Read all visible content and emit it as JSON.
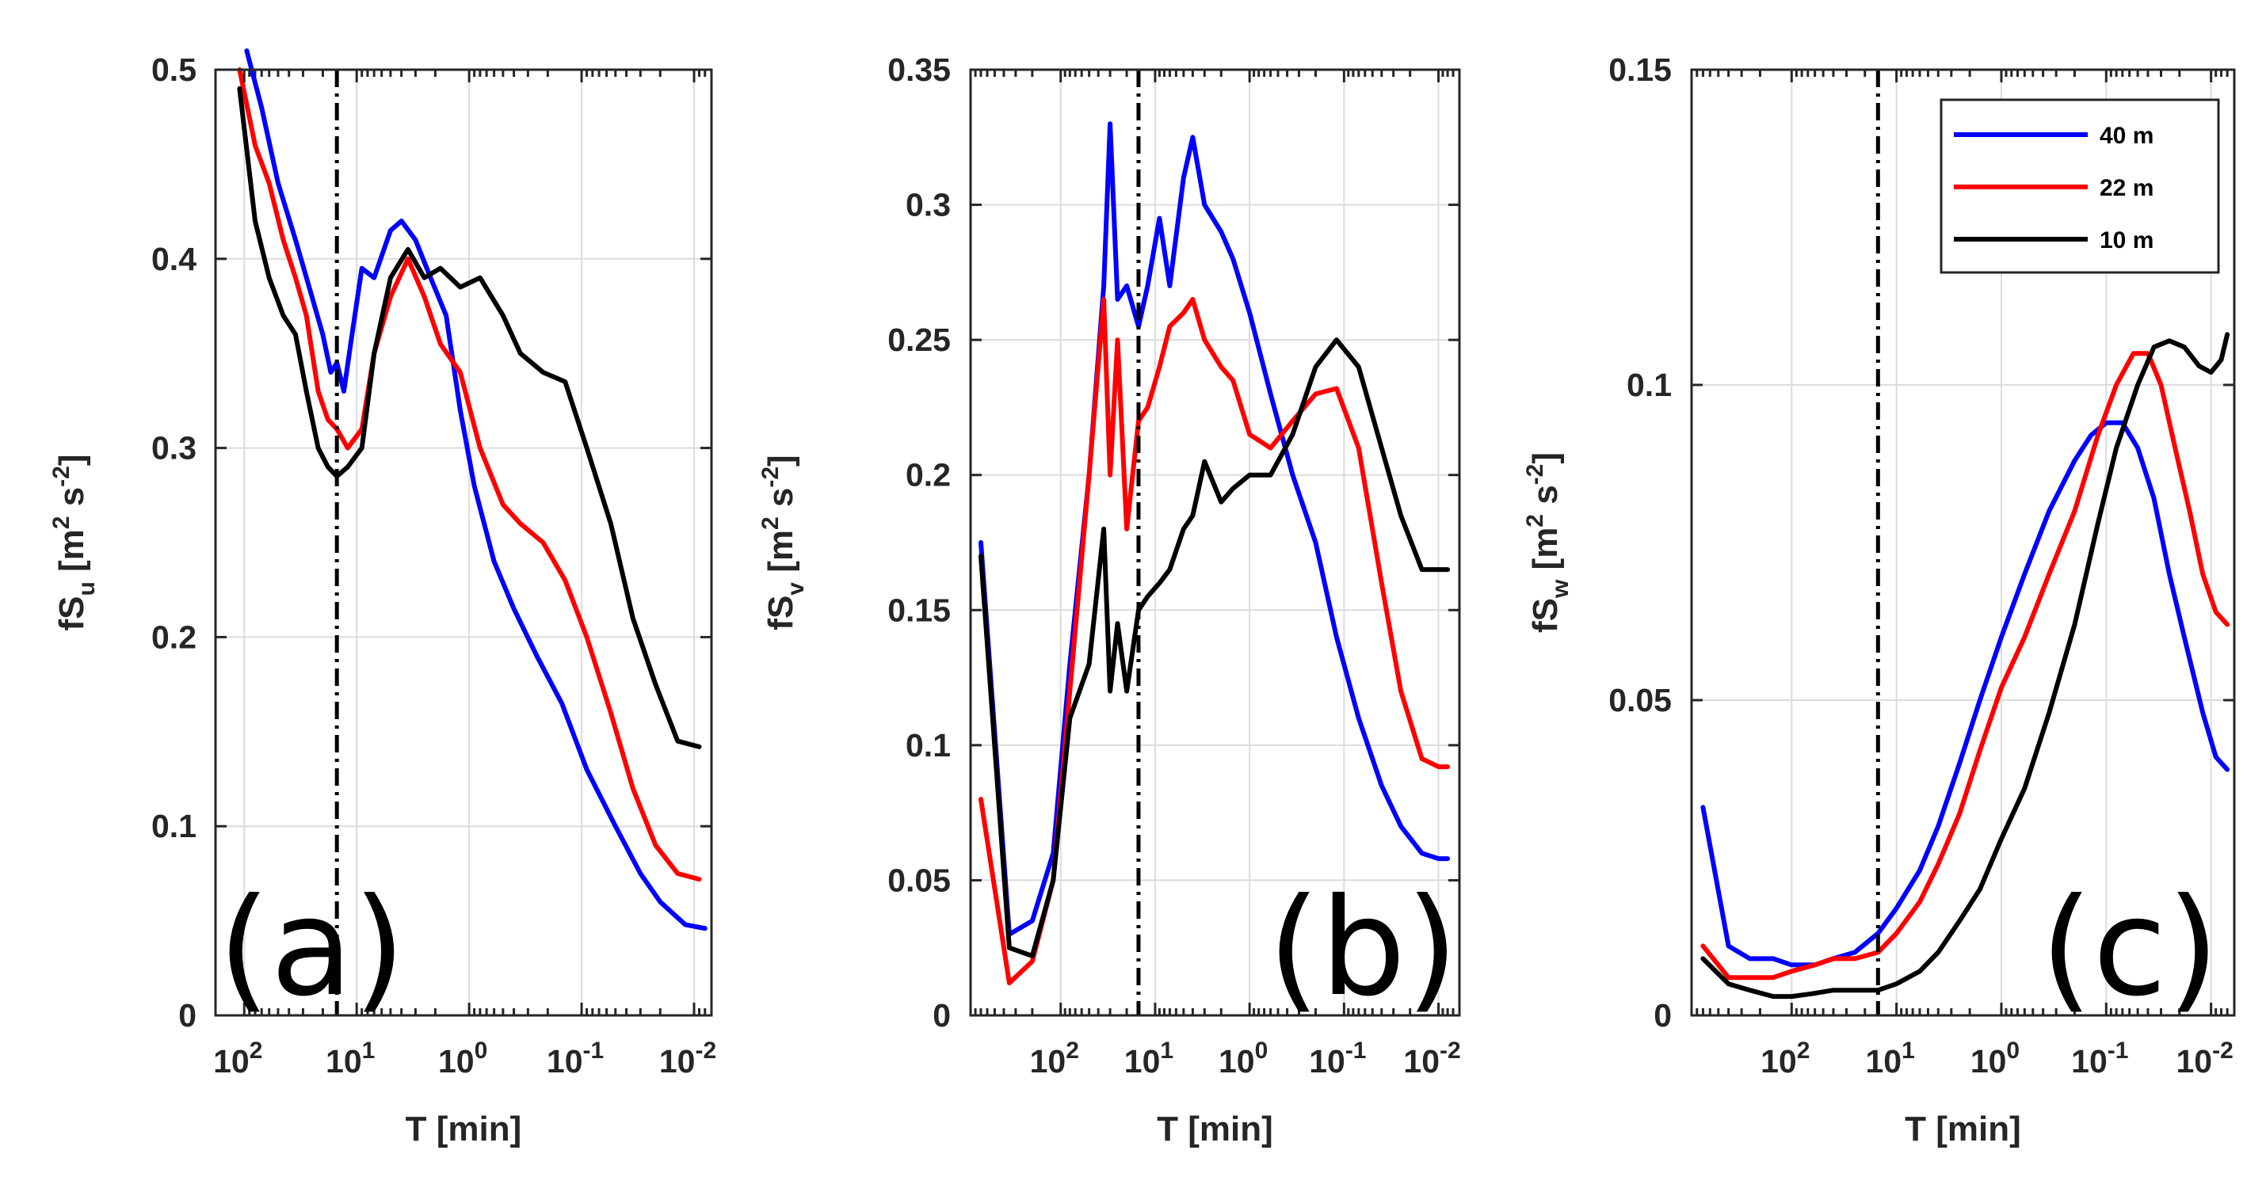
{
  "chart_data": [
    {
      "type": "line",
      "panel_label": "(a)",
      "xlabel": "T [min]",
      "ylabel_base": "fS",
      "ylabel_sub": "u",
      "ylabel_unit_open": " [m",
      "ylabel_unit_sup1": "2",
      "ylabel_unit_mid": " s",
      "ylabel_unit_sup2": "-2",
      "ylabel_unit_close": "]",
      "x_scale": "log-reversed",
      "xlim_min": [
        180,
        0.007
      ],
      "ylim": [
        0,
        0.5
      ],
      "yticks": [
        0,
        0.1,
        0.2,
        0.3,
        0.4,
        0.5
      ],
      "ytick_labels": [
        "0",
        "0.1",
        "0.2",
        "0.3",
        "0.4",
        "0.5"
      ],
      "xtick_labels": [
        {
          "base": "10",
          "exp": "2",
          "value": 100
        },
        {
          "base": "10",
          "exp": "1",
          "value": 10
        },
        {
          "base": "10",
          "exp": "0",
          "value": 1
        },
        {
          "base": "10",
          "exp": "-1",
          "value": 0.1
        },
        {
          "base": "10",
          "exp": "-2",
          "value": 0.01
        }
      ],
      "vline_x": 15,
      "series": [
        {
          "name": "40 m",
          "color": "#0000ff",
          "x": [
            95,
            70,
            50,
            35,
            25,
            20,
            17,
            15,
            13,
            11,
            9,
            7,
            5,
            4,
            3,
            2.2,
            1.6,
            1.2,
            0.9,
            0.6,
            0.4,
            0.25,
            0.15,
            0.09,
            0.05,
            0.03,
            0.02,
            0.012,
            0.008
          ],
          "y": [
            0.51,
            0.48,
            0.44,
            0.41,
            0.38,
            0.36,
            0.34,
            0.345,
            0.33,
            0.36,
            0.395,
            0.39,
            0.415,
            0.42,
            0.41,
            0.39,
            0.37,
            0.32,
            0.28,
            0.24,
            0.215,
            0.19,
            0.165,
            0.13,
            0.1,
            0.075,
            0.06,
            0.048,
            0.046
          ]
        },
        {
          "name": "22 m",
          "color": "#ff0000",
          "x": [
            110,
            80,
            60,
            45,
            35,
            28,
            22,
            18,
            15,
            12,
            9,
            7,
            5,
            3.5,
            2.5,
            1.8,
            1.2,
            0.8,
            0.5,
            0.35,
            0.22,
            0.14,
            0.09,
            0.055,
            0.035,
            0.022,
            0.014,
            0.009
          ],
          "y": [
            0.5,
            0.46,
            0.44,
            0.41,
            0.39,
            0.37,
            0.33,
            0.315,
            0.31,
            0.3,
            0.31,
            0.35,
            0.38,
            0.4,
            0.38,
            0.355,
            0.34,
            0.3,
            0.27,
            0.26,
            0.25,
            0.23,
            0.2,
            0.16,
            0.12,
            0.09,
            0.075,
            0.072
          ]
        },
        {
          "name": "10 m",
          "color": "#000000",
          "x": [
            110,
            80,
            60,
            45,
            35,
            28,
            22,
            18,
            15,
            12,
            9,
            7,
            5,
            3.5,
            2.5,
            1.8,
            1.2,
            0.8,
            0.5,
            0.35,
            0.22,
            0.14,
            0.09,
            0.055,
            0.035,
            0.022,
            0.014,
            0.009
          ],
          "y": [
            0.49,
            0.42,
            0.39,
            0.37,
            0.36,
            0.33,
            0.3,
            0.29,
            0.285,
            0.29,
            0.3,
            0.35,
            0.39,
            0.405,
            0.39,
            0.395,
            0.385,
            0.39,
            0.37,
            0.35,
            0.34,
            0.335,
            0.3,
            0.26,
            0.21,
            0.175,
            0.145,
            0.142
          ]
        }
      ]
    },
    {
      "type": "line",
      "panel_label": "(b)",
      "xlabel": "T [min]",
      "ylabel_base": "fS",
      "ylabel_sub": "v",
      "ylabel_unit_open": " [m",
      "ylabel_unit_sup1": "2",
      "ylabel_unit_mid": " s",
      "ylabel_unit_sup2": "-2",
      "ylabel_unit_close": "]",
      "x_scale": "log-reversed",
      "xlim_min": [
        900,
        0.006
      ],
      "ylim": [
        0,
        0.35
      ],
      "yticks": [
        0,
        0.05,
        0.1,
        0.15,
        0.2,
        0.25,
        0.3,
        0.35
      ],
      "ytick_labels": [
        "0",
        "0.05",
        "0.1",
        "0.15",
        "0.2",
        "0.25",
        "0.3",
        "0.35"
      ],
      "xtick_labels": [
        {
          "base": "10",
          "exp": "2",
          "value": 100
        },
        {
          "base": "10",
          "exp": "1",
          "value": 10
        },
        {
          "base": "10",
          "exp": "0",
          "value": 1
        },
        {
          "base": "10",
          "exp": "-1",
          "value": 0.1
        },
        {
          "base": "10",
          "exp": "-2",
          "value": 0.01
        }
      ],
      "vline_x": 15,
      "series": [
        {
          "name": "40 m",
          "color": "#0000ff",
          "x": [
            700,
            350,
            200,
            120,
            80,
            50,
            35,
            30,
            25,
            20,
            15,
            12,
            9,
            7,
            5,
            4,
            3,
            2,
            1.5,
            1,
            0.6,
            0.35,
            0.2,
            0.12,
            0.07,
            0.04,
            0.025,
            0.015,
            0.01,
            0.008
          ],
          "y": [
            0.175,
            0.03,
            0.035,
            0.06,
            0.13,
            0.2,
            0.27,
            0.33,
            0.265,
            0.27,
            0.255,
            0.27,
            0.295,
            0.27,
            0.31,
            0.325,
            0.3,
            0.29,
            0.28,
            0.26,
            0.23,
            0.2,
            0.175,
            0.14,
            0.11,
            0.085,
            0.07,
            0.06,
            0.058,
            0.058
          ]
        },
        {
          "name": "22 m",
          "color": "#ff0000",
          "x": [
            700,
            350,
            200,
            120,
            80,
            50,
            35,
            30,
            25,
            20,
            15,
            12,
            9,
            7,
            5,
            4,
            3,
            2,
            1.5,
            1,
            0.6,
            0.35,
            0.2,
            0.12,
            0.07,
            0.04,
            0.025,
            0.015,
            0.01,
            0.008
          ],
          "y": [
            0.08,
            0.012,
            0.02,
            0.05,
            0.12,
            0.2,
            0.265,
            0.2,
            0.25,
            0.18,
            0.22,
            0.225,
            0.24,
            0.255,
            0.26,
            0.265,
            0.25,
            0.24,
            0.235,
            0.215,
            0.21,
            0.22,
            0.23,
            0.232,
            0.21,
            0.16,
            0.12,
            0.095,
            0.092,
            0.092
          ]
        },
        {
          "name": "10 m",
          "color": "#000000",
          "x": [
            700,
            350,
            200,
            120,
            80,
            50,
            35,
            30,
            25,
            20,
            15,
            12,
            9,
            7,
            5,
            4,
            3,
            2,
            1.5,
            1,
            0.6,
            0.35,
            0.2,
            0.12,
            0.07,
            0.04,
            0.025,
            0.015,
            0.01,
            0.008
          ],
          "y": [
            0.17,
            0.025,
            0.022,
            0.05,
            0.11,
            0.13,
            0.18,
            0.12,
            0.145,
            0.12,
            0.15,
            0.155,
            0.16,
            0.165,
            0.18,
            0.185,
            0.205,
            0.19,
            0.195,
            0.2,
            0.2,
            0.215,
            0.24,
            0.25,
            0.24,
            0.21,
            0.185,
            0.165,
            0.165,
            0.165
          ]
        }
      ]
    },
    {
      "type": "line",
      "panel_label": "(c)",
      "xlabel": "T [min]",
      "ylabel_base": "fS",
      "ylabel_sub": "w",
      "ylabel_unit_open": " [m",
      "ylabel_unit_sup1": "2",
      "ylabel_unit_mid": " s",
      "ylabel_unit_sup2": "-2",
      "ylabel_unit_close": "]",
      "x_scale": "log-reversed",
      "xlim_min": [
        900,
        0.006
      ],
      "ylim": [
        0,
        0.15
      ],
      "yticks": [
        0,
        0.05,
        0.1,
        0.15
      ],
      "ytick_labels": [
        "0",
        "0.05",
        "0.1",
        "0.15"
      ],
      "xtick_labels": [
        {
          "base": "10",
          "exp": "2",
          "value": 100
        },
        {
          "base": "10",
          "exp": "1",
          "value": 10
        },
        {
          "base": "10",
          "exp": "0",
          "value": 1
        },
        {
          "base": "10",
          "exp": "-1",
          "value": 0.1
        },
        {
          "base": "10",
          "exp": "-2",
          "value": 0.01
        }
      ],
      "vline_x": 15,
      "legend_position": "top-right",
      "series": [
        {
          "name": "40 m",
          "color": "#0000ff",
          "x": [
            700,
            400,
            250,
            150,
            100,
            60,
            40,
            25,
            15,
            10,
            6,
            4,
            2.5,
            1.6,
            1,
            0.6,
            0.35,
            0.2,
            0.14,
            0.1,
            0.07,
            0.05,
            0.035,
            0.025,
            0.018,
            0.012,
            0.009,
            0.007
          ],
          "y": [
            0.033,
            0.011,
            0.009,
            0.009,
            0.008,
            0.008,
            0.009,
            0.01,
            0.013,
            0.017,
            0.023,
            0.03,
            0.04,
            0.05,
            0.06,
            0.07,
            0.08,
            0.088,
            0.092,
            0.094,
            0.094,
            0.09,
            0.082,
            0.07,
            0.06,
            0.048,
            0.041,
            0.039
          ]
        },
        {
          "name": "22 m",
          "color": "#ff0000",
          "x": [
            700,
            400,
            250,
            150,
            100,
            60,
            40,
            25,
            15,
            10,
            6,
            4,
            2.5,
            1.6,
            1,
            0.6,
            0.35,
            0.2,
            0.12,
            0.08,
            0.055,
            0.04,
            0.03,
            0.022,
            0.016,
            0.012,
            0.009,
            0.007
          ],
          "y": [
            0.011,
            0.006,
            0.006,
            0.006,
            0.007,
            0.008,
            0.009,
            0.009,
            0.01,
            0.013,
            0.018,
            0.024,
            0.032,
            0.042,
            0.052,
            0.06,
            0.07,
            0.08,
            0.092,
            0.1,
            0.105,
            0.105,
            0.1,
            0.09,
            0.08,
            0.07,
            0.064,
            0.062
          ]
        },
        {
          "name": "10 m",
          "color": "#000000",
          "x": [
            700,
            400,
            250,
            150,
            100,
            60,
            40,
            25,
            15,
            10,
            6,
            4,
            2.5,
            1.6,
            1,
            0.6,
            0.35,
            0.2,
            0.12,
            0.08,
            0.05,
            0.035,
            0.025,
            0.018,
            0.013,
            0.01,
            0.008,
            0.007
          ],
          "y": [
            0.009,
            0.005,
            0.004,
            0.003,
            0.003,
            0.0035,
            0.004,
            0.004,
            0.004,
            0.005,
            0.007,
            0.01,
            0.015,
            0.02,
            0.028,
            0.036,
            0.048,
            0.062,
            0.078,
            0.09,
            0.1,
            0.106,
            0.107,
            0.106,
            0.103,
            0.102,
            0.104,
            0.108
          ]
        }
      ]
    }
  ]
}
